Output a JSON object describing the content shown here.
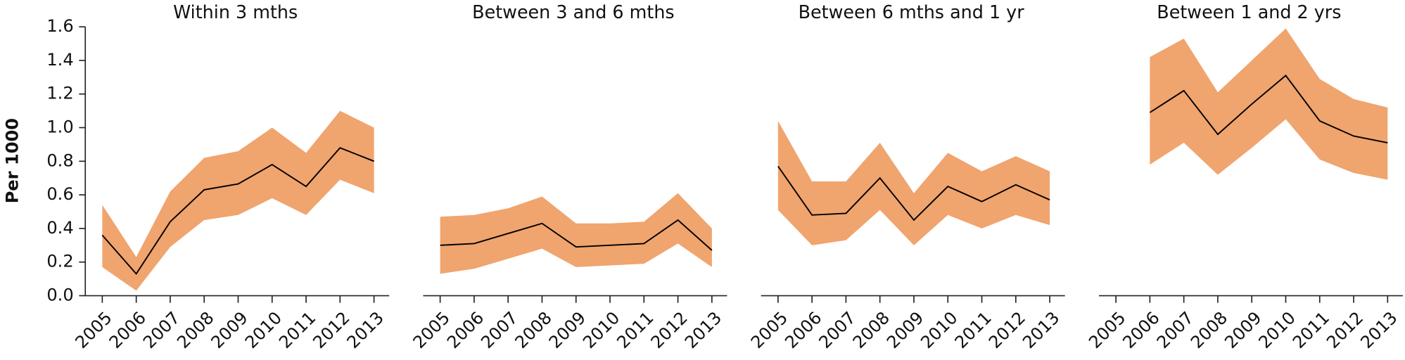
{
  "chart_data": [
    {
      "type": "line",
      "title": "Within 3 mths",
      "y_label": "Per 1000",
      "categories": [
        "2005",
        "2006",
        "2007",
        "2008",
        "2009",
        "2010",
        "2011",
        "2012",
        "2013"
      ],
      "ylim": [
        0,
        1.6
      ],
      "yticks": [
        {
          "value": 0,
          "label": "0.0"
        },
        0.2,
        0.4,
        0.6,
        0.8,
        {
          "value": 1,
          "label": "1.0"
        },
        1.2,
        1.4,
        1.6
      ],
      "band_color": "#f0a46e",
      "series": [
        {
          "color": "#000000",
          "values": [
            0.36,
            0.13,
            0.44,
            0.63,
            0.665,
            0.78,
            0.65,
            0.88,
            0.8
          ],
          "upper": [
            0.54,
            0.23,
            0.62,
            0.82,
            0.86,
            1.0,
            0.85,
            1.1,
            1.0
          ],
          "lower": [
            0.17,
            0.03,
            0.29,
            0.45,
            0.48,
            0.58,
            0.48,
            0.69,
            0.61
          ]
        }
      ]
    },
    {
      "type": "line",
      "title": "Between 3 and 6 mths",
      "categories": [
        "2005",
        "2006",
        "2007",
        "2008",
        "2009",
        "2010",
        "2011",
        "2012",
        "2013"
      ],
      "ylim": [
        0,
        1.6
      ],
      "band_color": "#f0a46e",
      "series": [
        {
          "color": "#000000",
          "values": [
            0.3,
            0.31,
            0.37,
            0.43,
            0.29,
            0.3,
            0.31,
            0.45,
            0.27
          ],
          "upper": [
            0.47,
            0.48,
            0.52,
            0.59,
            0.43,
            0.43,
            0.44,
            0.61,
            0.4
          ],
          "lower": [
            0.13,
            0.16,
            0.22,
            0.28,
            0.17,
            0.18,
            0.19,
            0.31,
            0.17
          ]
        }
      ]
    },
    {
      "type": "line",
      "title": "Between 6 mths and 1 yr",
      "categories": [
        "2005",
        "2006",
        "2007",
        "2008",
        "2009",
        "2010",
        "2011",
        "2012",
        "2013"
      ],
      "ylim": [
        0,
        1.6
      ],
      "band_color": "#f0a46e",
      "series": [
        {
          "color": "#000000",
          "values": [
            0.77,
            0.48,
            0.49,
            0.7,
            0.45,
            0.65,
            0.56,
            0.66,
            0.57
          ],
          "upper": [
            1.04,
            0.68,
            0.68,
            0.91,
            0.61,
            0.85,
            0.74,
            0.83,
            0.74
          ],
          "lower": [
            0.51,
            0.3,
            0.33,
            0.51,
            0.3,
            0.48,
            0.4,
            0.48,
            0.42
          ]
        }
      ]
    },
    {
      "type": "line",
      "title": "Between 1 and 2 yrs",
      "categories": [
        "2005",
        "2006",
        "2007",
        "2008",
        "2009",
        "2010",
        "2011",
        "2012",
        "2013"
      ],
      "ylim": [
        0,
        1.6
      ],
      "band_color": "#f0a46e",
      "series": [
        {
          "color": "#000000",
          "values": [
            null,
            1.09,
            1.22,
            0.96,
            1.14,
            1.31,
            1.04,
            0.95,
            0.91
          ],
          "upper": [
            null,
            1.42,
            1.53,
            1.21,
            1.4,
            1.59,
            1.29,
            1.17,
            1.12
          ],
          "lower": [
            null,
            0.78,
            0.91,
            0.72,
            0.88,
            1.05,
            0.81,
            0.73,
            0.69
          ]
        }
      ]
    }
  ]
}
